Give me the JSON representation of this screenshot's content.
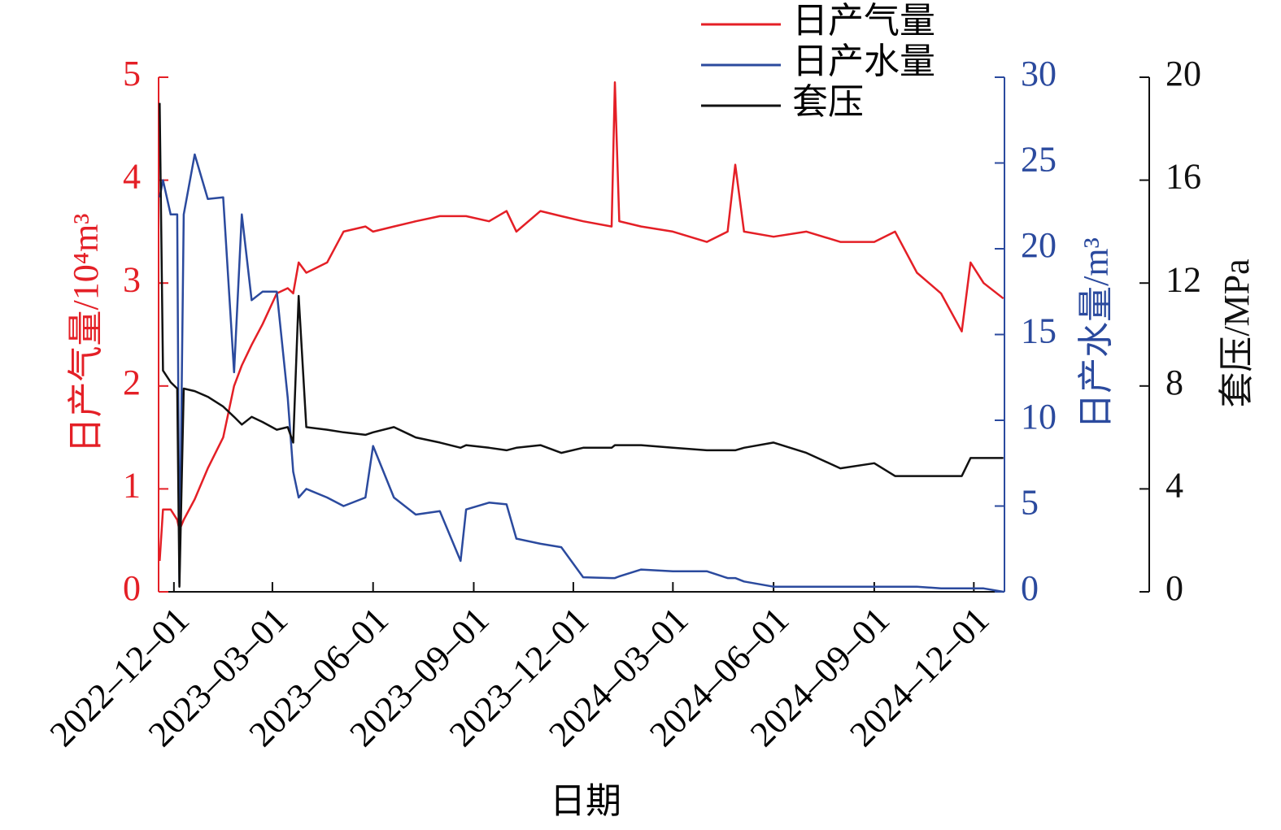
{
  "chart_data": {
    "type": "line",
    "xlabel": "日期",
    "ylabel": "日产气量/10⁴m³",
    "y2label": "日产水量/m³",
    "y3label": "套压/MPa",
    "legend": "top-center",
    "x": [
      "2022-11-18",
      "2022-11-21",
      "2022-11-28",
      "2022-12-04",
      "2022-12-06",
      "2022-12-10",
      "2022-12-20",
      "2023-01-01",
      "2023-01-15",
      "2023-01-25",
      "2023-02-01",
      "2023-02-10",
      "2023-02-20",
      "2023-03-05",
      "2023-03-15",
      "2023-03-20",
      "2023-03-25",
      "2023-04-01",
      "2023-04-20",
      "2023-05-05",
      "2023-05-25",
      "2023-06-01",
      "2023-06-20",
      "2023-07-10",
      "2023-08-01",
      "2023-08-20",
      "2023-08-25",
      "2023-09-15",
      "2023-10-01",
      "2023-10-10",
      "2023-11-01",
      "2023-11-20",
      "2023-12-10",
      "2024-01-05",
      "2024-01-08",
      "2024-01-12",
      "2024-02-01",
      "2024-03-01",
      "2024-04-01",
      "2024-04-20",
      "2024-04-27",
      "2024-05-05",
      "2024-06-01",
      "2024-07-01",
      "2024-08-01",
      "2024-09-01",
      "2024-09-20",
      "2024-10-10",
      "2024-11-01",
      "2024-11-20",
      "2024-11-28",
      "2024-12-10",
      "2024-12-28"
    ],
    "series": [
      {
        "name": "日产气量",
        "color": "#e41f26",
        "axis": "y",
        "values": [
          0.3,
          0.8,
          0.8,
          0.7,
          0.6,
          0.7,
          0.9,
          1.2,
          1.5,
          2.0,
          2.2,
          2.4,
          2.6,
          2.9,
          2.95,
          2.9,
          3.2,
          3.1,
          3.2,
          3.5,
          3.55,
          3.5,
          3.55,
          3.6,
          3.65,
          3.65,
          3.65,
          3.6,
          3.7,
          3.5,
          3.7,
          3.65,
          3.6,
          3.55,
          4.95,
          3.6,
          3.55,
          3.5,
          3.4,
          3.5,
          4.15,
          3.5,
          3.45,
          3.5,
          3.4,
          3.4,
          3.5,
          3.1,
          2.9,
          2.53,
          3.2,
          3.0,
          2.85
        ]
      },
      {
        "name": "日产水量",
        "color": "#2b4a9e",
        "axis": "y2",
        "values": [
          23,
          24,
          22,
          22,
          0.5,
          22,
          25.5,
          22.9,
          23,
          12.8,
          22,
          17,
          17.5,
          17.5,
          11.3,
          7,
          5.5,
          6,
          5.5,
          5,
          5.5,
          8.5,
          5.5,
          4.5,
          4.7,
          1.8,
          4.8,
          5.2,
          5.1,
          3.1,
          2.8,
          2.6,
          0.85,
          0.8,
          0.8,
          0.9,
          1.3,
          1.2,
          1.2,
          0.8,
          0.8,
          0.6,
          0.3,
          0.3,
          0.3,
          0.3,
          0.3,
          0.3,
          0.2,
          0.2,
          0.2,
          0.2,
          0.0
        ]
      },
      {
        "name": "套压",
        "color": "#111111",
        "axis": "y3",
        "values": [
          19,
          8.6,
          8.15,
          7.9,
          0.2,
          7.9,
          7.8,
          7.58,
          7.2,
          6.8,
          6.5,
          6.8,
          6.6,
          6.3,
          6.4,
          5.8,
          11.5,
          6.4,
          6.3,
          6.2,
          6.1,
          6.2,
          6.4,
          6.0,
          5.8,
          5.6,
          5.7,
          5.6,
          5.5,
          5.6,
          5.7,
          5.4,
          5.6,
          5.6,
          5.7,
          5.7,
          5.7,
          5.6,
          5.5,
          5.5,
          5.5,
          5.6,
          5.8,
          5.4,
          4.8,
          5.0,
          4.5,
          4.5,
          4.5,
          4.5,
          5.2,
          5.2,
          5.2
        ]
      }
    ],
    "xlim": [
      "2022-11-17",
      "2024-12-29"
    ],
    "xticks": [
      {
        "value": "2022-12-01",
        "label": "2022–12–01"
      },
      {
        "value": "2023-03-01",
        "label": "2023–03–01"
      },
      {
        "value": "2023-06-01",
        "label": "2023–06–01"
      },
      {
        "value": "2023-09-01",
        "label": "2023–09–01"
      },
      {
        "value": "2023-12-01",
        "label": "2023–12–01"
      },
      {
        "value": "2024-03-01",
        "label": "2024–03–01"
      },
      {
        "value": "2024-06-01",
        "label": "2024–06–01"
      },
      {
        "value": "2024-09-01",
        "label": "2024–09–01"
      },
      {
        "value": "2024-12-01",
        "label": "2024–12–01"
      }
    ],
    "ylim": [
      0,
      5
    ],
    "yticks": [
      0,
      1,
      2,
      3,
      4,
      5
    ],
    "y2lim": [
      0,
      30
    ],
    "y2ticks": [
      0,
      5,
      10,
      15,
      20,
      25,
      30
    ],
    "y3lim": [
      0,
      20
    ],
    "y3ticks": [
      0,
      4,
      8,
      12,
      16,
      20
    ]
  }
}
